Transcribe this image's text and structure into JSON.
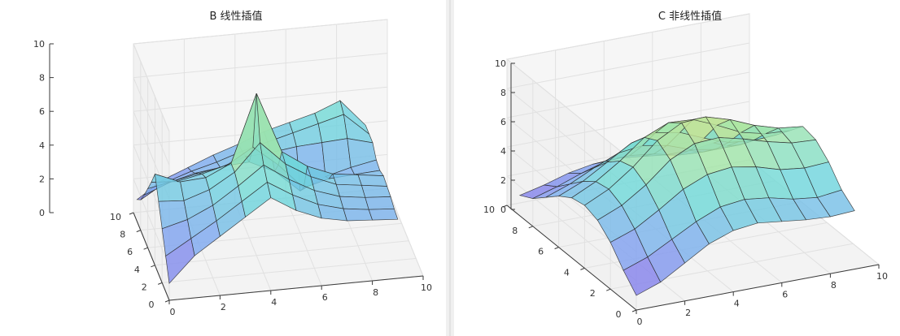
{
  "chart_data": [
    {
      "type": "surface",
      "title": "B 线性插值",
      "xlabel": "",
      "ylabel": "",
      "zlabel": "",
      "xlim": [
        0,
        10
      ],
      "ylim": [
        0,
        10
      ],
      "zlim": [
        0,
        10
      ],
      "x_ticks": [
        "0",
        "2",
        "4",
        "6",
        "8",
        "10"
      ],
      "y_ticks": [
        "0",
        "2",
        "4",
        "6",
        "8",
        "10"
      ],
      "z_ticks": [
        "0",
        "2",
        "4",
        "6",
        "8",
        "10"
      ],
      "grid": true,
      "colormap": [
        "#8A6FEA",
        "#7FAAF0",
        "#6FD8DB",
        "#A8E6A2",
        "#F3DB7E"
      ],
      "x": [
        0,
        1,
        2,
        3,
        4,
        5,
        6,
        7,
        8,
        9
      ],
      "y": [
        0,
        1,
        2,
        3,
        4,
        5,
        6,
        7,
        8,
        9
      ],
      "z": [
        [
          1.0,
          2.5,
          3.5,
          4.5,
          5.5,
          4.6,
          4.0,
          3.7,
          3.6,
          3.5
        ],
        [
          2.1,
          3.0,
          3.9,
          4.9,
          5.9,
          5.0,
          4.3,
          3.9,
          3.7,
          3.6
        ],
        [
          3.2,
          3.6,
          4.3,
          5.3,
          6.4,
          5.4,
          4.6,
          4.1,
          3.9,
          3.8
        ],
        [
          4.3,
          4.2,
          4.7,
          5.6,
          7.2,
          5.8,
          4.9,
          4.3,
          4.1,
          3.9
        ],
        [
          5.4,
          4.8,
          4.9,
          5.6,
          9.6,
          6.0,
          5.0,
          4.4,
          4.2,
          4.0
        ],
        [
          4.4,
          4.3,
          4.6,
          5.0,
          5.9,
          4.7,
          3.2,
          3.6,
          3.7,
          3.8
        ],
        [
          3.5,
          3.8,
          4.1,
          4.4,
          4.5,
          3.8,
          2.5,
          3.2,
          3.6,
          3.9
        ],
        [
          2.6,
          3.2,
          3.6,
          3.8,
          4.3,
          4.4,
          4.6,
          4.7,
          4.8,
          4.4
        ],
        [
          1.8,
          2.7,
          3.2,
          3.6,
          4.1,
          4.5,
          4.9,
          5.3,
          5.7,
          4.4
        ],
        [
          1.3,
          2.3,
          2.9,
          3.5,
          4.0,
          4.6,
          5.0,
          5.4,
          6.0,
          4.4
        ]
      ]
    },
    {
      "type": "surface",
      "title": "C 非线性插值",
      "xlabel": "",
      "ylabel": "",
      "zlabel": "",
      "xlim": [
        0,
        10
      ],
      "ylim": [
        0,
        10
      ],
      "zlim": [
        0,
        10
      ],
      "x_ticks": [
        "0",
        "2",
        "4",
        "6",
        "8",
        "10"
      ],
      "y_ticks": [
        "0",
        "2",
        "4",
        "6",
        "8",
        "10"
      ],
      "z_ticks": [
        "0",
        "2",
        "4",
        "6",
        "8",
        "10"
      ],
      "grid": true,
      "colormap": [
        "#8A6FEA",
        "#7FAAF0",
        "#6FD8DB",
        "#A8E6A2",
        "#F3DB7E"
      ],
      "x": [
        0,
        1,
        2,
        3,
        4,
        5,
        6,
        7,
        8,
        9
      ],
      "y": [
        0,
        1,
        2,
        3,
        4,
        5,
        6,
        7,
        8,
        9
      ],
      "z": [
        [
          1.0,
          1.6,
          2.6,
          3.6,
          4.2,
          4.4,
          4.2,
          4.0,
          3.9,
          4.0
        ],
        [
          2.0,
          2.6,
          3.5,
          4.4,
          5.1,
          5.3,
          5.1,
          4.7,
          4.5,
          4.7
        ],
        [
          3.2,
          3.8,
          4.8,
          5.9,
          6.6,
          6.8,
          6.5,
          6.0,
          5.8,
          5.9
        ],
        [
          4.0,
          4.7,
          5.8,
          7.2,
          8.0,
          8.1,
          7.7,
          7.2,
          6.8,
          6.7
        ],
        [
          4.3,
          5.1,
          6.3,
          7.8,
          8.7,
          8.8,
          8.3,
          7.6,
          7.1,
          6.9
        ],
        [
          4.1,
          4.9,
          6.0,
          7.3,
          8.0,
          7.9,
          7.2,
          6.4,
          6.0,
          5.9
        ],
        [
          3.5,
          4.2,
          5.2,
          6.2,
          6.6,
          6.3,
          5.6,
          5.0,
          4.8,
          4.9
        ],
        [
          2.7,
          3.3,
          4.1,
          4.8,
          5.0,
          4.7,
          4.1,
          3.8,
          3.8,
          4.0
        ],
        [
          1.9,
          2.4,
          3.0,
          3.5,
          3.6,
          3.4,
          3.0,
          2.9,
          3.0,
          3.3
        ],
        [
          1.4,
          1.8,
          2.3,
          2.6,
          2.7,
          2.5,
          2.3,
          2.3,
          2.5,
          2.8
        ]
      ]
    }
  ]
}
